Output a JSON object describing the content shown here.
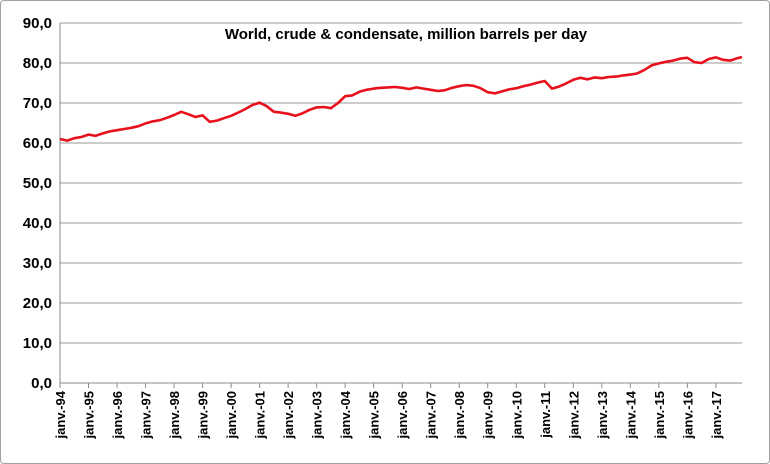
{
  "chart_data": {
    "type": "line",
    "title": "World, crude & condensate, million barrels per day",
    "xlabel": "",
    "ylabel": "",
    "ylim": [
      0,
      90
    ],
    "ytick_values": [
      0,
      10,
      20,
      30,
      40,
      50,
      60,
      70,
      80,
      90
    ],
    "ytick_labels": [
      "0,0",
      "10,0",
      "20,0",
      "30,0",
      "40,0",
      "50,0",
      "60,0",
      "70,0",
      "80,0",
      "90,0"
    ],
    "xlim": [
      "1994-01",
      "2017-12"
    ],
    "xtick_labels": [
      "janv.-94",
      "janv.-95",
      "janv.-96",
      "janv.-97",
      "janv.-98",
      "janv.-99",
      "janv.-00",
      "janv.-01",
      "janv.-02",
      "janv.-03",
      "janv.-04",
      "janv.-05",
      "janv.-06",
      "janv.-07",
      "janv.-08",
      "janv.-09",
      "janv.-10",
      "janv.-11",
      "janv.-12",
      "janv.-13",
      "janv.-14",
      "janv.-15",
      "janv.-16",
      "janv.-17"
    ],
    "grid": true,
    "legend": "none",
    "line_color": "#e8101c",
    "series": [
      {
        "x": [
          "1994-01",
          "1994-04",
          "1994-07",
          "1994-10",
          "1995-01",
          "1995-04",
          "1995-07",
          "1995-10",
          "1996-01",
          "1996-04",
          "1996-07",
          "1996-10",
          "1997-01",
          "1997-04",
          "1997-07",
          "1997-10",
          "1998-01",
          "1998-04",
          "1998-07",
          "1998-10",
          "1999-01",
          "1999-04",
          "1999-07",
          "1999-10",
          "2000-01",
          "2000-04",
          "2000-07",
          "2000-10",
          "2001-01",
          "2001-04",
          "2001-07",
          "2001-10",
          "2002-01",
          "2002-04",
          "2002-07",
          "2002-10",
          "2003-01",
          "2003-04",
          "2003-07",
          "2003-10",
          "2004-01",
          "2004-04",
          "2004-07",
          "2004-10",
          "2005-01",
          "2005-04",
          "2005-07",
          "2005-10",
          "2006-01",
          "2006-04",
          "2006-07",
          "2006-10",
          "2007-01",
          "2007-04",
          "2007-07",
          "2007-10",
          "2008-01",
          "2008-04",
          "2008-07",
          "2008-10",
          "2009-01",
          "2009-04",
          "2009-07",
          "2009-10",
          "2010-01",
          "2010-04",
          "2010-07",
          "2010-10",
          "2011-01",
          "2011-04",
          "2011-07",
          "2011-10",
          "2012-01",
          "2012-04",
          "2012-07",
          "2012-10",
          "2013-01",
          "2013-04",
          "2013-07",
          "2013-10",
          "2014-01",
          "2014-04",
          "2014-07",
          "2014-10",
          "2015-01",
          "2015-04",
          "2015-07",
          "2015-10",
          "2016-01",
          "2016-04",
          "2016-07",
          "2016-10",
          "2017-01",
          "2017-04",
          "2017-07",
          "2017-10",
          "2017-12"
        ],
        "values": [
          61.0,
          60.6,
          61.2,
          61.5,
          62.1,
          61.8,
          62.4,
          62.9,
          63.2,
          63.5,
          63.8,
          64.2,
          64.9,
          65.4,
          65.7,
          66.3,
          67.0,
          67.8,
          67.2,
          66.5,
          66.9,
          65.3,
          65.6,
          66.2,
          66.8,
          67.6,
          68.5,
          69.5,
          70.1,
          69.2,
          67.8,
          67.6,
          67.3,
          66.8,
          67.4,
          68.3,
          68.9,
          69.0,
          68.7,
          70.0,
          71.7,
          71.9,
          72.8,
          73.3,
          73.6,
          73.8,
          73.9,
          74.0,
          73.8,
          73.5,
          73.9,
          73.6,
          73.3,
          73.0,
          73.2,
          73.8,
          74.2,
          74.5,
          74.3,
          73.7,
          72.7,
          72.4,
          72.9,
          73.4,
          73.7,
          74.2,
          74.6,
          75.1,
          75.5,
          73.6,
          74.1,
          74.9,
          75.8,
          76.3,
          75.9,
          76.4,
          76.2,
          76.5,
          76.6,
          76.9,
          77.1,
          77.4,
          78.3,
          79.4,
          79.9,
          80.3,
          80.6,
          81.1,
          81.3,
          80.2,
          80.0,
          81.0,
          81.4,
          80.8,
          80.6,
          81.2,
          81.5
        ]
      }
    ]
  }
}
